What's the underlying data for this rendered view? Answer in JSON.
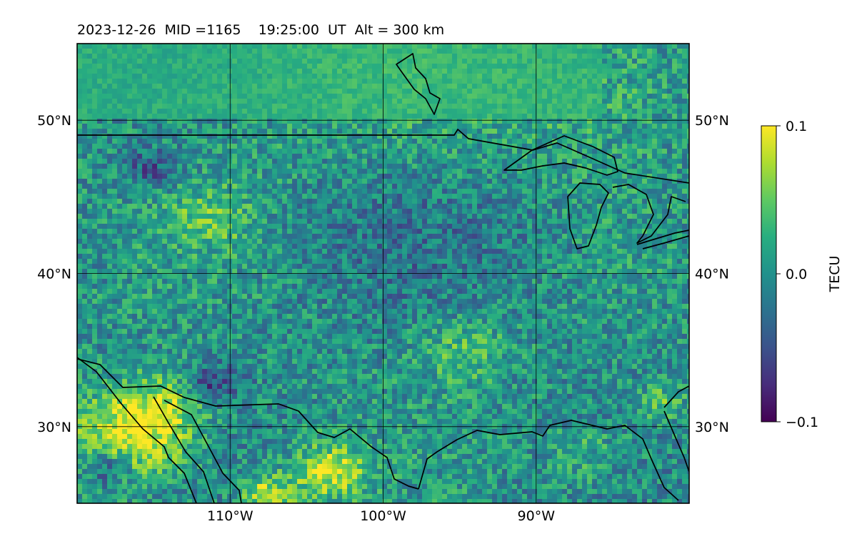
{
  "header": {
    "title": "2023-12-26  MID =1165    19:25:00  UT  Alt = 300 km"
  },
  "map": {
    "lon_range": [
      -120,
      -80
    ],
    "lat_range": [
      25,
      55
    ],
    "lon_ticks": [
      {
        "value": -110,
        "label": "110°W"
      },
      {
        "value": -100,
        "label": "100°W"
      },
      {
        "value": -90,
        "label": "90°W"
      }
    ],
    "lat_ticks": [
      {
        "value": 50,
        "label": "50°N"
      },
      {
        "value": 40,
        "label": "40°N"
      },
      {
        "value": 30,
        "label": "30°N"
      }
    ],
    "gridlines": true,
    "colormap": "viridis",
    "boundary_color": "#000000"
  },
  "colorbar": {
    "label": "TECU",
    "min": -0.1,
    "max": 0.1,
    "ticks": [
      {
        "value": 0.1,
        "label": "0.1"
      },
      {
        "value": 0.0,
        "label": "0.0"
      },
      {
        "value": -0.1,
        "label": "−0.1"
      }
    ]
  }
}
